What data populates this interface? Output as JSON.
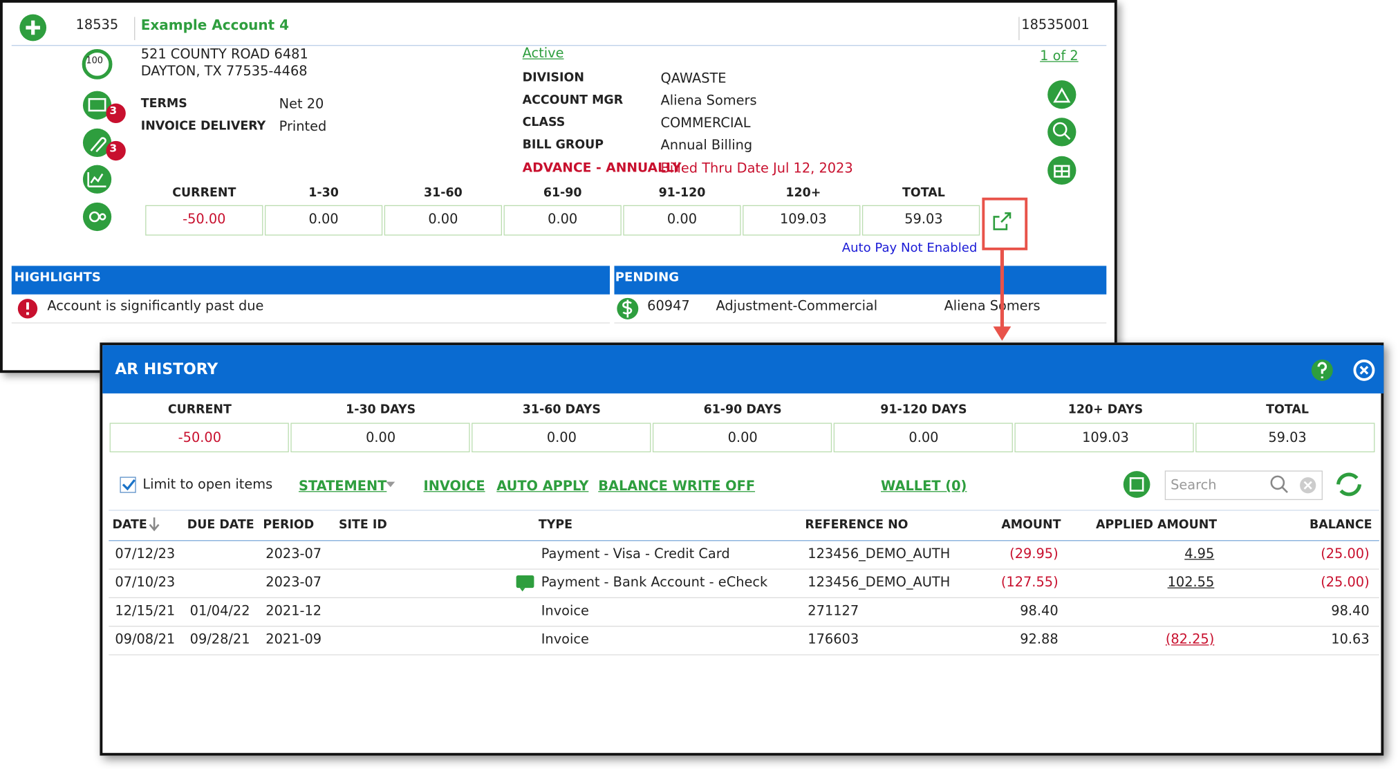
{
  "account": {
    "id": "18535",
    "name": "Example Account 4",
    "number": "18535001",
    "score": "100",
    "address": [
      "521 COUNTY ROAD 6481",
      "DAYTON, TX 77535-4468"
    ],
    "badges": [
      "3",
      "3"
    ],
    "terms": {
      "label": "TERMS",
      "value": "Net 20"
    },
    "invoice_delivery": {
      "label": "INVOICE DELIVERY",
      "value": "Printed"
    },
    "status": "Active",
    "details": [
      {
        "label": "DIVISION",
        "value": "QAWASTE"
      },
      {
        "label": "ACCOUNT MGR",
        "value": "Aliena Somers"
      },
      {
        "label": "CLASS",
        "value": "COMMERCIAL"
      },
      {
        "label": "BILL GROUP",
        "value": "Annual Billing"
      }
    ],
    "billing": {
      "label": "ADVANCE - ANNUALLY",
      "value": "Billed Thru Date Jul 12, 2023"
    },
    "pager": "1 of 2",
    "aging": {
      "headers": [
        "CURRENT",
        "1-30",
        "31-60",
        "61-90",
        "91-120",
        "120+",
        "TOTAL"
      ],
      "values": [
        "-50.00",
        "0.00",
        "0.00",
        "0.00",
        "0.00",
        "109.03",
        "59.03"
      ]
    },
    "autopay": "Auto Pay Not Enabled"
  },
  "highlights": {
    "title": "HIGHLIGHTS",
    "items": [
      "Account is significantly past due"
    ]
  },
  "pending": {
    "title": "PENDING",
    "items": [
      [
        "60947",
        "Adjustment-Commercial",
        "Aliena Somers"
      ]
    ]
  },
  "ar_history": {
    "title": "AR HISTORY",
    "aging": {
      "headers": [
        "CURRENT",
        "1-30 DAYS",
        "31-60 DAYS",
        "61-90 DAYS",
        "91-120 DAYS",
        "120+ DAYS",
        "TOTAL"
      ],
      "values": [
        "-50.00",
        "0.00",
        "0.00",
        "0.00",
        "0.00",
        "109.03",
        "59.03"
      ]
    },
    "limit_label": "Limit to open items",
    "actions": [
      "STATEMENT",
      "INVOICE",
      "AUTO APPLY",
      "BALANCE WRITE OFF"
    ],
    "wallet": "WALLET (0)",
    "search_placeholder": "Search",
    "columns": [
      "DATE",
      "DUE DATE",
      "PERIOD",
      "SITE ID",
      "TYPE",
      "REFERENCE NO",
      "AMOUNT",
      "APPLIED AMOUNT",
      "BALANCE"
    ],
    "rows": [
      [
        "07/12/23",
        null,
        "2023-07",
        null,
        "Payment - Visa - Credit Card",
        "123456_DEMO_AUTH",
        "(29.95)",
        "4.95",
        "(25.00)"
      ],
      [
        "07/10/23",
        null,
        "2023-07",
        null,
        "Payment - Bank Account - eCheck",
        "123456_DEMO_AUTH",
        "(127.55)",
        "102.55",
        "(25.00)"
      ],
      [
        "12/15/21",
        "01/04/22",
        "2021-12",
        null,
        "Invoice",
        "271127",
        "98.40",
        null,
        "98.40"
      ],
      [
        "09/08/21",
        "09/28/21",
        "2021-09",
        null,
        "Invoice",
        "176603",
        "92.88",
        "(82.25)",
        "10.63"
      ]
    ]
  }
}
